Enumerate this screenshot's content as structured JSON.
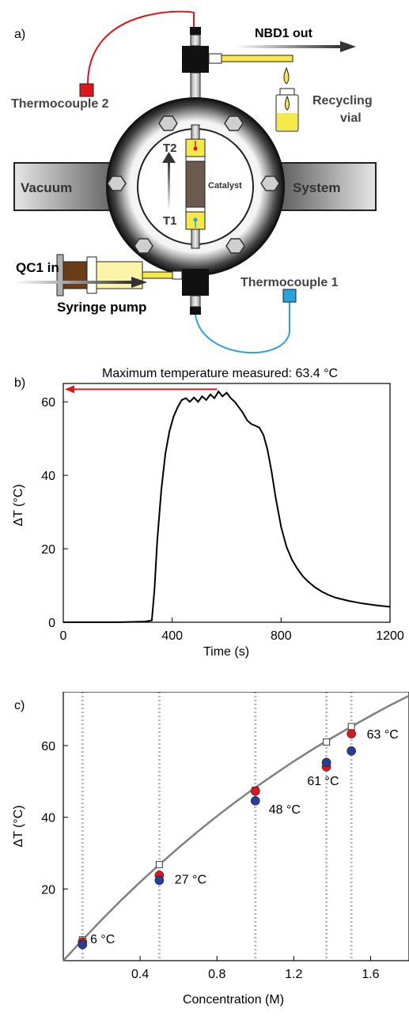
{
  "panel_a": {
    "label": "a)",
    "labels": {
      "nbd_out": "NBD1 out",
      "thermocouple2": "Thermocouple 2",
      "recycling_vial": "Recycling\nvial",
      "vacuum": "Vacuum",
      "system": "System",
      "t2": "T2",
      "t1": "T1",
      "catalyst": "Catalyst",
      "qc_in": "QC1 in",
      "thermocouple1": "Thermocouple 1",
      "syringe_pump": "Syringe pump"
    },
    "colors": {
      "thermocouple2_wire": "#e0141b",
      "thermocouple1_wire": "#29a3dc",
      "fluid": "#f5e94a",
      "catalyst": "#6b5a4d",
      "ring_dark": "#1a1a1a"
    }
  },
  "chart_data": [
    {
      "type": "line",
      "panel_label": "b)",
      "xlabel": "Time (s)",
      "ylabel": "ΔT (°C)",
      "xlim": [
        0,
        1200
      ],
      "ylim": [
        0,
        65
      ],
      "xticks": [
        0,
        400,
        800,
        1200
      ],
      "yticks": [
        0,
        20,
        40,
        60
      ],
      "annotation": "Maximum temperature measured: 63.4 °C",
      "annotation_arrow_color": "#e0141b",
      "series": [
        {
          "color": "#000000",
          "x": [
            0,
            100,
            200,
            300,
            325,
            335,
            345,
            360,
            375,
            390,
            405,
            420,
            435,
            450,
            465,
            480,
            495,
            510,
            525,
            540,
            555,
            570,
            585,
            600,
            615,
            630,
            645,
            660,
            675,
            690,
            705,
            720,
            735,
            750,
            765,
            780,
            800,
            820,
            840,
            860,
            880,
            900,
            925,
            950,
            975,
            1000,
            1050,
            1100,
            1150,
            1200
          ],
          "values": [
            0,
            0,
            0,
            0.2,
            0.5,
            9,
            22,
            36,
            46,
            52,
            56,
            58.5,
            60.5,
            61,
            60,
            61.2,
            60,
            61.5,
            60.5,
            62,
            61,
            62.8,
            61.5,
            62.5,
            61,
            60,
            58.5,
            57,
            55,
            54,
            53.5,
            53,
            51,
            47,
            41,
            34,
            26,
            20.5,
            17,
            14.5,
            12.5,
            11,
            9.5,
            8.3,
            7.4,
            6.7,
            5.8,
            5.1,
            4.6,
            4.2
          ]
        }
      ]
    },
    {
      "type": "scatter",
      "panel_label": "c)",
      "xlabel": "Concentration (M)",
      "ylabel": "ΔT (°C)",
      "xlim": [
        0,
        1.8
      ],
      "ylim": [
        0,
        75
      ],
      "xticks": [
        0.4,
        0.8,
        1.2,
        1.6
      ],
      "yticks": [
        20,
        40,
        60
      ],
      "vertical_guides": [
        0.1,
        0.5,
        1.0,
        1.37,
        1.5
      ],
      "fit_curve": {
        "color": "#808080",
        "x": [
          0,
          0.1,
          0.2,
          0.3,
          0.4,
          0.5,
          0.6,
          0.7,
          0.8,
          0.9,
          1.0,
          1.1,
          1.2,
          1.3,
          1.4,
          1.5,
          1.6,
          1.7,
          1.8
        ],
        "values": [
          0,
          5.8,
          11.4,
          16.8,
          21.9,
          26.8,
          31.5,
          36.0,
          40.3,
          44.4,
          48.3,
          52.0,
          55.6,
          59.0,
          62.2,
          65.3,
          68.3,
          71.2,
          73.9
        ]
      },
      "model_points": {
        "x": [
          0.1,
          0.5,
          1.0,
          1.37,
          1.5
        ],
        "values": [
          5.8,
          26.8,
          47.5,
          61.0,
          65.3
        ]
      },
      "series": [
        {
          "color": "#e0141b",
          "x": [
            0.1,
            0.5,
            1.0,
            1.37,
            1.5
          ],
          "values": [
            5.2,
            23.8,
            47.3,
            54.1,
            63.3
          ]
        },
        {
          "color": "#2b3b9a",
          "x": [
            0.1,
            0.5,
            1.0,
            1.37,
            1.5
          ],
          "values": [
            4.5,
            22.4,
            44.6,
            55.3,
            58.5
          ]
        }
      ],
      "annotations": [
        {
          "text": "6 °C",
          "x": 0.14,
          "y": 4.8
        },
        {
          "text": "27 °C",
          "x": 0.58,
          "y": 21.5
        },
        {
          "text": "48 °C",
          "x": 1.07,
          "y": 41
        },
        {
          "text": "61 °C",
          "x": 1.27,
          "y": 49
        },
        {
          "text": "63 °C",
          "x": 1.58,
          "y": 62
        }
      ]
    }
  ]
}
